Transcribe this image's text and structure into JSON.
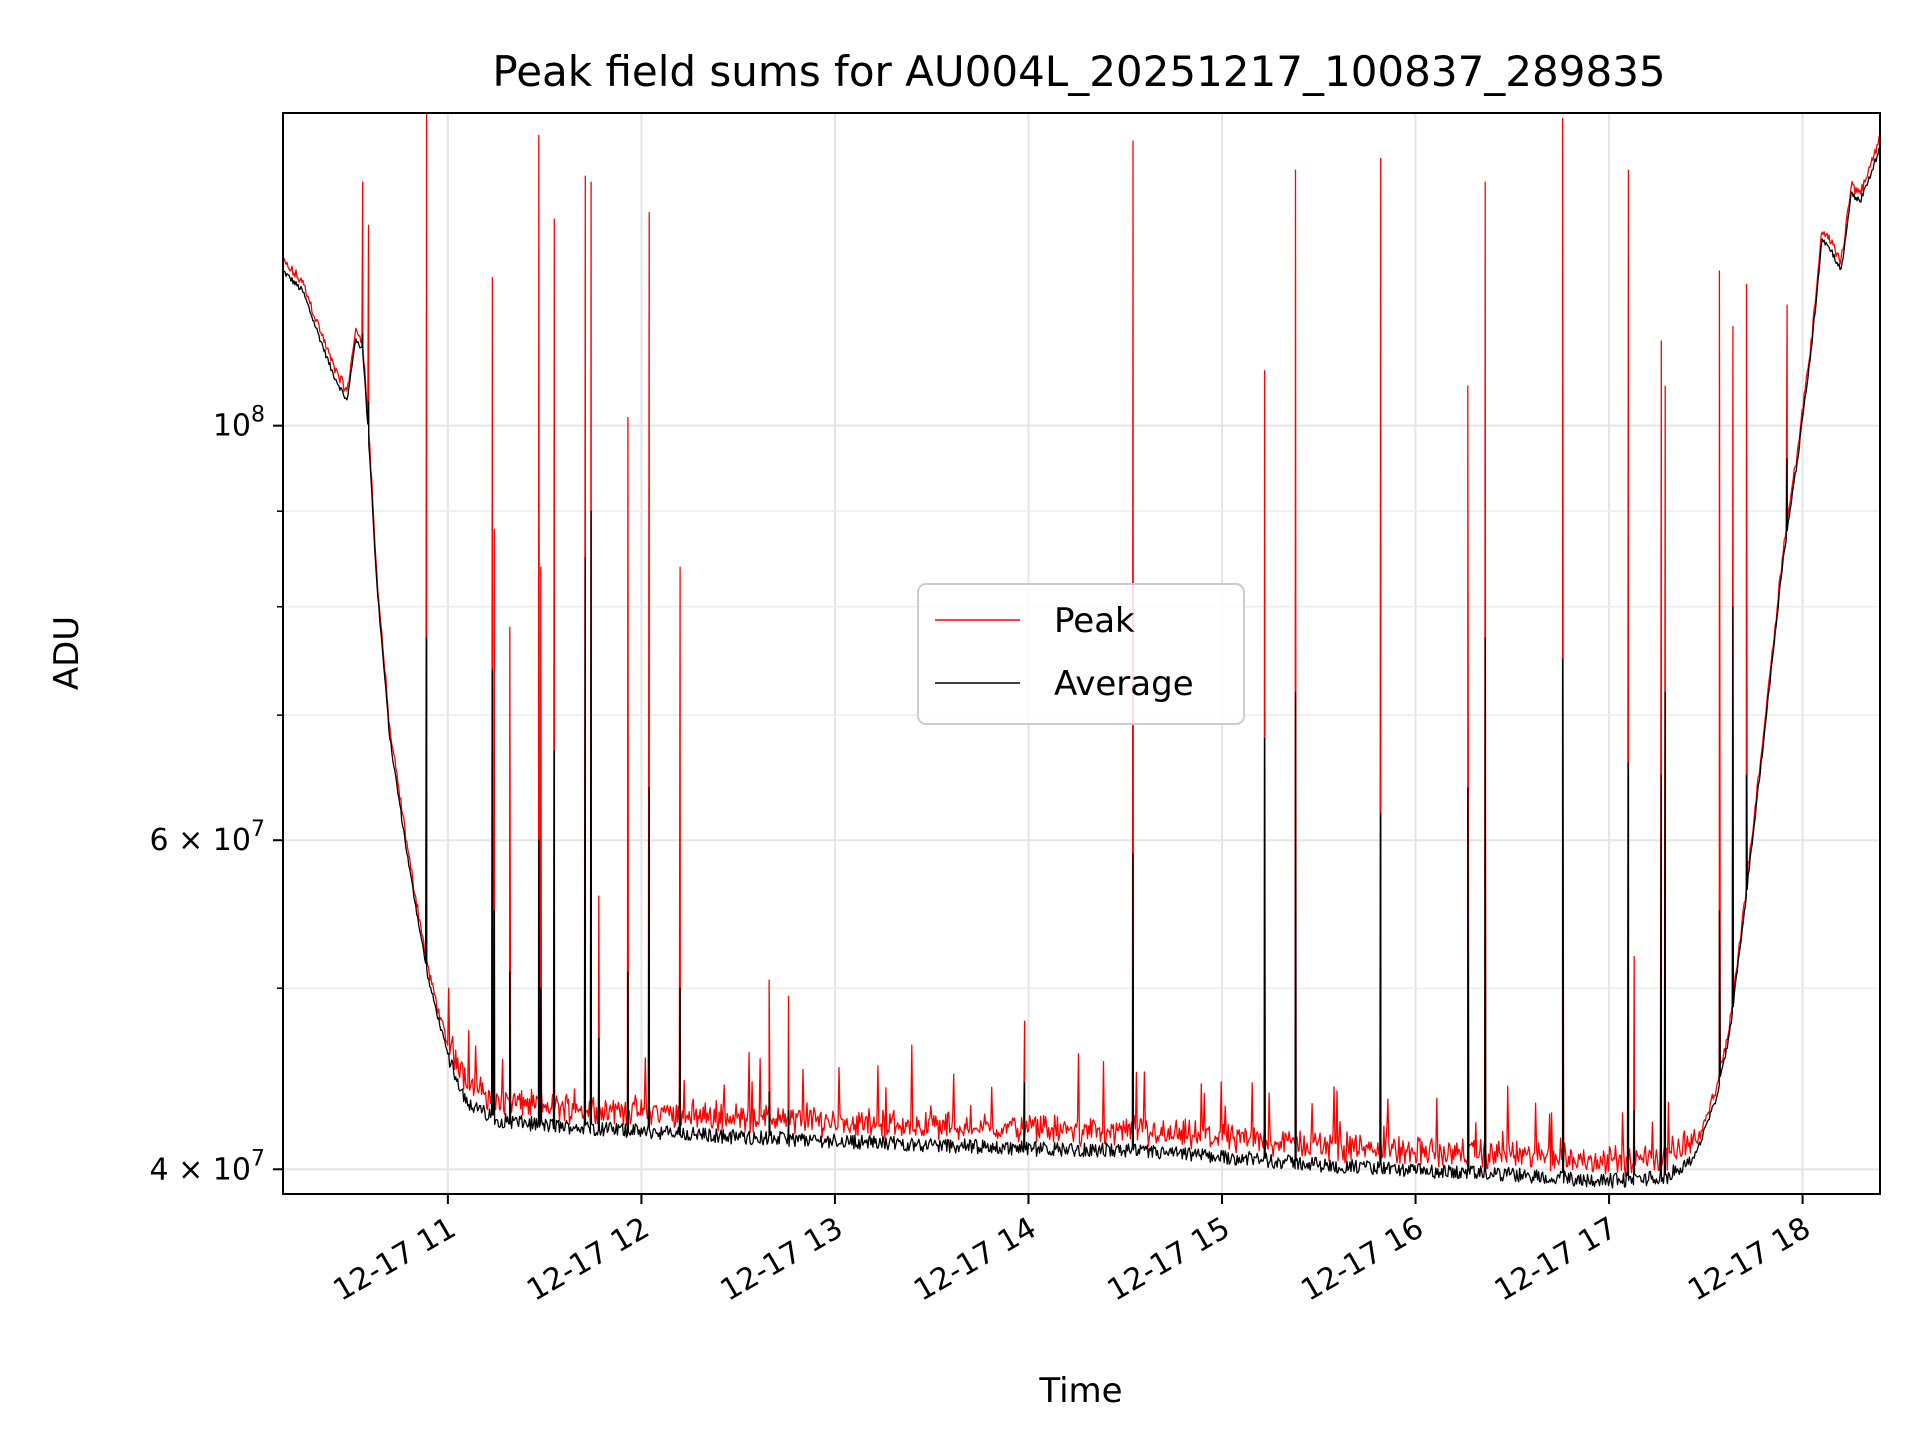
{
  "chart_data": {
    "type": "line",
    "title": "Peak field sums for AU004L_20251217_100837_289835",
    "xlabel": "Time",
    "ylabel": "ADU",
    "yscale": "log",
    "xlim_hours": [
      10.148,
      18.4
    ],
    "ylim": [
      38800000,
      147000000
    ],
    "grid": true,
    "legend_position": "center",
    "x_ticks": [
      {
        "hour": 11,
        "label": "12-17 11"
      },
      {
        "hour": 12,
        "label": "12-17 12"
      },
      {
        "hour": 13,
        "label": "12-17 13"
      },
      {
        "hour": 14,
        "label": "12-17 14"
      },
      {
        "hour": 15,
        "label": "12-17 15"
      },
      {
        "hour": 16,
        "label": "12-17 16"
      },
      {
        "hour": 17,
        "label": "12-17 17"
      },
      {
        "hour": 18,
        "label": "12-17 18"
      }
    ],
    "y_ticks": [
      {
        "value": 40000000,
        "base": "4 × 10",
        "exp": "7"
      },
      {
        "value": 60000000,
        "base": "6 × 10",
        "exp": "7"
      },
      {
        "value": 100000000,
        "base": "10",
        "exp": "8"
      }
    ],
    "y_minor_ticks": [
      50000000,
      70000000,
      80000000,
      90000000
    ],
    "series": [
      {
        "name": "Peak",
        "color": "#ff0000"
      },
      {
        "name": "Average",
        "color": "#000000"
      }
    ],
    "baseline": {
      "hours": [
        10.148,
        10.25,
        10.33,
        10.4,
        10.48,
        10.52,
        10.56,
        10.6,
        10.63,
        10.7,
        10.8,
        10.9,
        11.0,
        11.1,
        11.25,
        11.5,
        12.0,
        12.5,
        13.0,
        13.5,
        14.0,
        14.5,
        15.0,
        15.5,
        16.0,
        16.5,
        17.0,
        17.3,
        17.45,
        17.55,
        17.62,
        17.7,
        17.8,
        17.9,
        17.98,
        18.05,
        18.1,
        18.15,
        18.2,
        18.25,
        18.3,
        18.35,
        18.4
      ],
      "average": [
        121000000,
        118000000,
        112000000,
        107000000,
        103000000,
        111000000,
        110000000,
        95000000,
        83000000,
        68000000,
        58000000,
        50500000,
        46000000,
        43500000,
        42600000,
        42300000,
        42000000,
        41700000,
        41500000,
        41300000,
        41100000,
        41000000,
        40700000,
        40300000,
        40000000,
        39800000,
        39500000,
        39700000,
        40800000,
        43500000,
        47000000,
        55000000,
        68000000,
        85000000,
        97000000,
        111000000,
        126000000,
        124000000,
        121000000,
        133000000,
        132000000,
        136000000,
        141000000
      ]
    },
    "spikes": [
      {
        "hour": 10.56,
        "peak": 135000000,
        "average": 112000000
      },
      {
        "hour": 10.59,
        "peak": 128000000,
        "average": 103000000
      },
      {
        "hour": 10.89,
        "peak": 147000000,
        "average": 77000000
      },
      {
        "hour": 11.23,
        "peak": 120000000,
        "average": 74000000
      },
      {
        "hour": 11.24,
        "peak": 88000000,
        "average": 55000000
      },
      {
        "hour": 11.32,
        "peak": 78000000,
        "average": 51000000
      },
      {
        "hour": 11.47,
        "peak": 143000000,
        "average": 60000000
      },
      {
        "hour": 11.48,
        "peak": 84000000,
        "average": 50000000
      },
      {
        "hour": 11.55,
        "peak": 129000000,
        "average": 67000000
      },
      {
        "hour": 11.71,
        "peak": 136000000,
        "average": 85000000
      },
      {
        "hour": 11.74,
        "peak": 135000000,
        "average": 90000000
      },
      {
        "hour": 11.78,
        "peak": 56000000,
        "average": 47000000
      },
      {
        "hour": 11.93,
        "peak": 101000000,
        "average": 51000000
      },
      {
        "hour": 12.04,
        "peak": 130000000,
        "average": 64000000
      },
      {
        "hour": 12.2,
        "peak": 84000000,
        "average": 50000000
      },
      {
        "hour": 12.66,
        "peak": 50500000,
        "average": 44000000
      },
      {
        "hour": 12.76,
        "peak": 49500000,
        "average": 43000000
      },
      {
        "hour": 13.98,
        "peak": 48000000,
        "average": 44500000
      },
      {
        "hour": 14.54,
        "peak": 142000000,
        "average": 59000000
      },
      {
        "hour": 15.22,
        "peak": 107000000,
        "average": 68000000
      },
      {
        "hour": 15.38,
        "peak": 137000000,
        "average": 72000000
      },
      {
        "hour": 15.82,
        "peak": 139000000,
        "average": 62000000
      },
      {
        "hour": 16.27,
        "peak": 105000000,
        "average": 64000000
      },
      {
        "hour": 16.36,
        "peak": 135000000,
        "average": 77000000
      },
      {
        "hour": 16.76,
        "peak": 146000000,
        "average": 75000000
      },
      {
        "hour": 17.1,
        "peak": 137000000,
        "average": 66000000
      },
      {
        "hour": 17.13,
        "peak": 52000000,
        "average": 43000000
      },
      {
        "hour": 17.27,
        "peak": 111000000,
        "average": 65000000
      },
      {
        "hour": 17.29,
        "peak": 105000000,
        "average": 72000000
      },
      {
        "hour": 17.57,
        "peak": 121000000,
        "average": 55000000
      },
      {
        "hour": 17.64,
        "peak": 113000000,
        "average": 80000000
      },
      {
        "hour": 17.71,
        "peak": 119000000,
        "average": 65000000
      },
      {
        "hour": 17.92,
        "peak": 116000000,
        "average": 96000000
      }
    ]
  }
}
